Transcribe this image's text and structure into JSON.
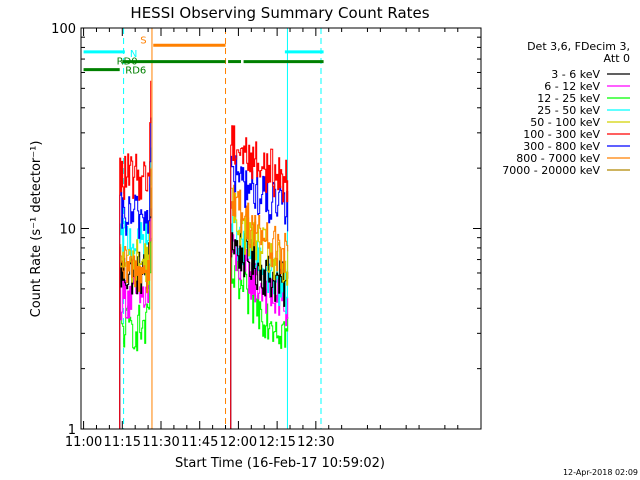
{
  "chart_data": {
    "type": "line",
    "title": "HESSI Observing Summary Count Rates",
    "xlabel": "Start Time (16-Feb-17 10:59:02)",
    "ylabel": "Count Rate (s⁻¹ detector⁻¹)",
    "yscale": "log",
    "ylim": [
      1,
      100
    ],
    "xlim_minutes_of_day": [
      659,
      814
    ],
    "x_ticks": [
      "11:00",
      "11:15",
      "11:30",
      "11:45",
      "12:00",
      "12:15",
      "12:30"
    ],
    "y_ticks": [
      "1",
      "10",
      "100"
    ],
    "legend_title": [
      "Det 3,6, FDecim 3,",
      "Att 0"
    ],
    "legend_position": "right",
    "timestamp": "12-Apr-2018 02:09",
    "grid": false,
    "segments": [
      {
        "start": "11:14",
        "end": "11:26"
      },
      {
        "start": "11:57",
        "end": "12:19"
      }
    ],
    "series": [
      {
        "name": "3 - 6 keV",
        "color": "#000000",
        "values": [
          {
            "segment": 1,
            "level": 6.0
          },
          {
            "segment": 2,
            "start": 9.0,
            "end": 5.0
          }
        ]
      },
      {
        "name": "6 - 12 keV",
        "color": "#ff00ff",
        "values": [
          {
            "segment": 1,
            "level": 4.6
          },
          {
            "segment": 2,
            "start": 8.0,
            "end": 4.0
          }
        ]
      },
      {
        "name": "12 - 25 keV",
        "color": "#00ff00",
        "values": [
          {
            "segment": 1,
            "level": 3.2
          },
          {
            "segment": 2,
            "start": 6.2,
            "end": 3.0
          }
        ]
      },
      {
        "name": "25 - 50 keV",
        "color": "#00ffff",
        "values": [
          {
            "segment": 1,
            "level": 8.8
          },
          {
            "segment": 2,
            "start": 11.0,
            "end": 4.8
          }
        ]
      },
      {
        "name": "50 - 100 keV",
        "color": "#d2d200",
        "values": [
          {
            "segment": 1,
            "level": 6.8
          },
          {
            "segment": 2,
            "start": 13.0,
            "end": 6.0
          }
        ]
      },
      {
        "name": "100 - 300 keV",
        "color": "#ff0000",
        "values": [
          {
            "segment": 1,
            "level": 18.0
          },
          {
            "segment": 2,
            "start": 29.0,
            "end": 17.0
          }
        ]
      },
      {
        "name": "300 - 800 keV",
        "color": "#0000ff",
        "values": [
          {
            "segment": 1,
            "level": 11.5
          },
          {
            "segment": 2,
            "start": 20.0,
            "end": 12.0
          }
        ]
      },
      {
        "name": "800 - 7000 keV",
        "color": "#ff8000",
        "values": [
          {
            "segment": 1,
            "level": 6.2
          },
          {
            "segment": 2,
            "start": 15.0,
            "end": 7.0
          }
        ]
      },
      {
        "name": "7000 - 20000 keV",
        "color": "#b08800",
        "values": []
      }
    ],
    "flags": [
      {
        "label": "N",
        "color": "#00ffff",
        "level": 76,
        "intervals": [
          [
            "11:00",
            "11:16"
          ],
          [
            "12:18",
            "12:33"
          ]
        ]
      },
      {
        "label": "S",
        "color": "#ff8000",
        "level": 82,
        "intervals": [
          [
            "11:27",
            "11:55"
          ]
        ]
      },
      {
        "label": "RD0",
        "color": "#008000",
        "level": 62,
        "intervals": [
          [
            "11:00",
            "11:14"
          ]
        ]
      },
      {
        "label": "RD6",
        "color": "#008000",
        "level": 68,
        "intervals": [
          [
            "11:15",
            "11:55"
          ],
          [
            "11:56",
            "12:01"
          ],
          [
            "12:02",
            "12:33"
          ]
        ]
      }
    ],
    "vlines": [
      {
        "time": "11:15.5",
        "color": "#00ffff",
        "style": "dashed"
      },
      {
        "time": "11:26.5",
        "color": "#ff8000",
        "style": "solid"
      },
      {
        "time": "11:55",
        "color": "#ff8000",
        "style": "dashed"
      },
      {
        "time": "12:19",
        "color": "#00ffff",
        "style": "solid"
      },
      {
        "time": "12:32",
        "color": "#00ffff",
        "style": "dashed"
      }
    ]
  }
}
